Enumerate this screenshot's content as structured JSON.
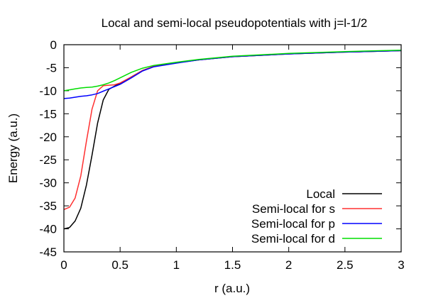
{
  "chart_data": {
    "type": "line",
    "title": "Local and semi-local pseudopotentials with j=l-1/2",
    "xlabel": "r (a.u.)",
    "ylabel": "Energy (a.u.)",
    "xlim": [
      0,
      3
    ],
    "ylim": [
      -45,
      0
    ],
    "x_ticks": [
      0,
      0.5,
      1,
      1.5,
      2,
      2.5,
      3
    ],
    "x_tick_labels": [
      "0",
      "0.5",
      "1",
      "1.5",
      "2",
      "2.5",
      "3"
    ],
    "y_ticks": [
      0,
      -5,
      -10,
      -15,
      -20,
      -25,
      -30,
      -35,
      -40,
      -45
    ],
    "y_tick_labels": [
      "0",
      "-5",
      "-10",
      "-15",
      "-20",
      "-25",
      "-30",
      "-35",
      "-40",
      "-45"
    ],
    "grid": false,
    "legend_position": "bottom-right",
    "series": [
      {
        "name": "Local",
        "color": "#000000",
        "x": [
          0,
          0.05,
          0.1,
          0.15,
          0.2,
          0.25,
          0.3,
          0.35,
          0.4,
          0.45,
          0.5,
          0.6,
          0.7,
          0.8,
          1.0,
          1.2,
          1.5,
          2.0,
          2.5,
          3.0
        ],
        "y": [
          -40,
          -39.7,
          -38.3,
          -35.5,
          -30.5,
          -24,
          -17,
          -12,
          -9.7,
          -9,
          -8.4,
          -7,
          -5.6,
          -4.7,
          -3.9,
          -3.3,
          -2.6,
          -2.0,
          -1.6,
          -1.3
        ]
      },
      {
        "name": "Semi-local for s",
        "color": "#ff3030",
        "x": [
          0,
          0.05,
          0.1,
          0.15,
          0.2,
          0.25,
          0.3,
          0.35,
          0.4,
          0.45,
          0.5,
          0.6,
          0.7,
          0.8,
          1.0,
          1.2,
          1.5,
          2.0,
          2.5,
          3.0
        ],
        "y": [
          -35.8,
          -35.3,
          -33.3,
          -28.5,
          -21,
          -14,
          -10,
          -8.9,
          -8.8,
          -8.7,
          -8.3,
          -7,
          -5.6,
          -4.7,
          -3.9,
          -3.3,
          -2.6,
          -2.0,
          -1.6,
          -1.3
        ]
      },
      {
        "name": "Semi-local for p",
        "color": "#0000ff",
        "x": [
          0,
          0.05,
          0.1,
          0.15,
          0.2,
          0.25,
          0.3,
          0.35,
          0.4,
          0.45,
          0.5,
          0.6,
          0.7,
          0.8,
          1.0,
          1.2,
          1.5,
          2.0,
          2.5,
          3.0
        ],
        "y": [
          -11.7,
          -11.6,
          -11.4,
          -11.2,
          -11.1,
          -10.9,
          -10.6,
          -10.1,
          -9.6,
          -9.1,
          -8.6,
          -7.2,
          -5.7,
          -4.8,
          -4.0,
          -3.3,
          -2.6,
          -2.0,
          -1.6,
          -1.3
        ]
      },
      {
        "name": "Semi-local for d",
        "color": "#00dd00",
        "x": [
          0,
          0.05,
          0.1,
          0.15,
          0.2,
          0.25,
          0.3,
          0.35,
          0.4,
          0.45,
          0.5,
          0.6,
          0.7,
          0.8,
          1.0,
          1.2,
          1.5,
          2.0,
          2.5,
          3.0
        ],
        "y": [
          -10,
          -9.8,
          -9.6,
          -9.4,
          -9.3,
          -9.2,
          -9.0,
          -8.7,
          -8.3,
          -7.8,
          -7.2,
          -6.0,
          -5.1,
          -4.5,
          -3.8,
          -3.2,
          -2.5,
          -1.9,
          -1.5,
          -1.2
        ]
      }
    ]
  }
}
